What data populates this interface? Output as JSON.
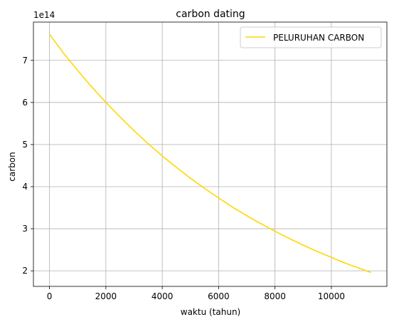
{
  "chart_data": {
    "type": "line",
    "title": "carbon dating",
    "xlabel": "waktu (tahun)",
    "ylabel": "carbon",
    "y_offset_label": "1e14",
    "xlim": [
      -570,
      11970
    ],
    "ylim": [
      1.63,
      7.91
    ],
    "xticks": [
      0,
      2000,
      4000,
      6000,
      8000,
      10000
    ],
    "xtick_labels": [
      "0",
      "2000",
      "4000",
      "6000",
      "8000",
      "10000"
    ],
    "yticks": [
      2,
      3,
      4,
      5,
      6,
      7
    ],
    "ytick_labels": [
      "2",
      "3",
      "4",
      "5",
      "6",
      "7"
    ],
    "grid": true,
    "legend": "top-right",
    "line_color": "#ffd700",
    "series": [
      {
        "name": "PELURUHAN CARBON",
        "x": [
          0,
          500,
          1000,
          1500,
          2000,
          2500,
          3000,
          3500,
          4000,
          4500,
          5000,
          5500,
          6000,
          6500,
          7000,
          7500,
          8000,
          8500,
          9000,
          9500,
          10000,
          10500,
          11000,
          11400
        ],
        "y": [
          7.62,
          7.17,
          6.76,
          6.37,
          6.0,
          5.66,
          5.33,
          5.02,
          4.73,
          4.46,
          4.2,
          3.96,
          3.73,
          3.51,
          3.31,
          3.12,
          2.94,
          2.77,
          2.61,
          2.46,
          2.32,
          2.18,
          2.06,
          1.96
        ]
      }
    ]
  }
}
